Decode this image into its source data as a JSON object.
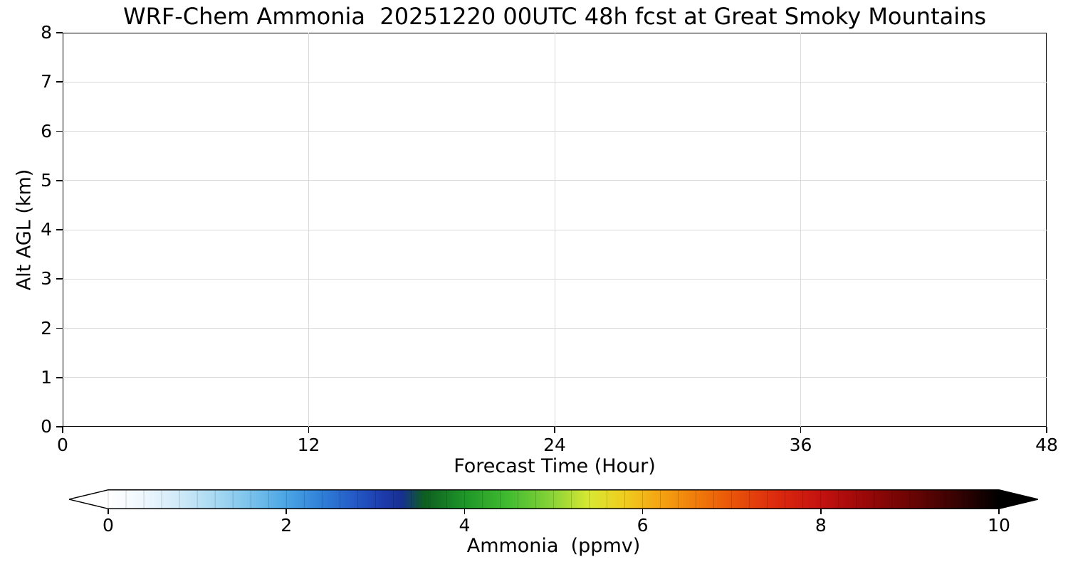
{
  "figure": {
    "background": "#ffffff",
    "text_color": "#000000",
    "grid_color": "#d9d9d9",
    "axis_color": "#000000"
  },
  "chart_data": {
    "type": "heatmap",
    "title": "WRF-Chem Ammonia  20251220 00UTC 48h fcst at Great Smoky Mountains",
    "xlabel": "Forecast Time (Hour)",
    "ylabel": "Alt AGL (km)",
    "xlim": [
      0,
      48
    ],
    "ylim": [
      0,
      8
    ],
    "x_ticks": [
      0,
      12,
      24,
      36,
      48
    ],
    "y_ticks": [
      0,
      1,
      2,
      3,
      4,
      5,
      6,
      7,
      8
    ],
    "grid": true,
    "field_note": "Time-height cross-section of ammonia; plot area is uniformly white, i.e. ammonia ~0 ppmv at all forecast hours (0-48) and all altitudes (0-8 km). No contour shading visible.",
    "colorbar": {
      "label": "Ammonia  (ppmv)",
      "range": [
        0,
        10
      ],
      "ticks": [
        0,
        2,
        4,
        6,
        8,
        10
      ],
      "extend": "both",
      "under_color": "#ffffff",
      "over_color": "#000000",
      "level_step": 0.2,
      "stops": [
        [
          0.0,
          "#ffffff"
        ],
        [
          0.4,
          "#eef7fd"
        ],
        [
          0.8,
          "#cfeaf8"
        ],
        [
          1.2,
          "#a8d9f2"
        ],
        [
          1.6,
          "#79c2ec"
        ],
        [
          2.0,
          "#4aa5e4"
        ],
        [
          2.4,
          "#2f7fd8"
        ],
        [
          2.8,
          "#2356c4"
        ],
        [
          3.1,
          "#1c3aaa"
        ],
        [
          3.3,
          "#173090"
        ],
        [
          3.55,
          "#0e5e20"
        ],
        [
          4.0,
          "#1e9628"
        ],
        [
          4.5,
          "#42bc30"
        ],
        [
          5.0,
          "#8cd438"
        ],
        [
          5.4,
          "#d8e832"
        ],
        [
          5.8,
          "#f0cc1e"
        ],
        [
          6.2,
          "#f4a312"
        ],
        [
          6.6,
          "#f07c0a"
        ],
        [
          7.0,
          "#ea5408"
        ],
        [
          7.5,
          "#dc2a0e"
        ],
        [
          8.0,
          "#c41210"
        ],
        [
          8.5,
          "#9a0808"
        ],
        [
          9.0,
          "#6c0404"
        ],
        [
          9.5,
          "#3a0202"
        ],
        [
          10.0,
          "#000000"
        ]
      ]
    }
  }
}
